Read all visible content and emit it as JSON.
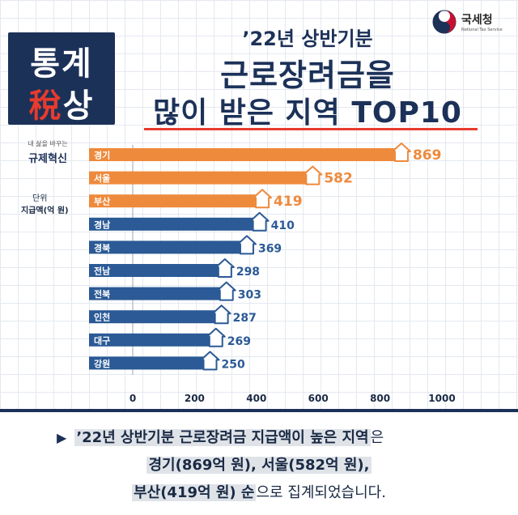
{
  "brand": {
    "logo_line1": "통계",
    "logo_line2_red": "稅",
    "logo_line2_white": "상",
    "agency_name": "국세청",
    "agency_en": "National Tax Service",
    "tagline_small": "내 삶을 바꾸는",
    "tagline_big": "규제혁신"
  },
  "title": {
    "sub": "’22년 상반기분",
    "main": "근로장려금을",
    "main2": "많이 받은 지역 TOP10"
  },
  "unit": {
    "label": "단위",
    "value": "지급액(억 원)"
  },
  "colors": {
    "navy": "#1c3158",
    "orange": "#ee8a3c",
    "blue": "#2b5a96",
    "red": "#e63b2e"
  },
  "chart_data": {
    "type": "bar",
    "orientation": "horizontal",
    "title": "’22년 상반기분 근로장려금을 많이 받은 지역 TOP10",
    "ylabel": "",
    "xlabel": "",
    "unit": "지급액(억 원)",
    "categories": [
      "경기",
      "서울",
      "부산",
      "경남",
      "경북",
      "전남",
      "전북",
      "인천",
      "대구",
      "강원"
    ],
    "values": [
      869,
      582,
      419,
      410,
      369,
      298,
      303,
      287,
      269,
      250
    ],
    "highlight_top": 3,
    "xlim": [
      0,
      1000
    ],
    "xticks": [
      0,
      200,
      400,
      600,
      800,
      1000
    ],
    "grid": true
  },
  "summary": {
    "arrow": "▶",
    "line1_highlight": "’22년 상반기분 근로장려금 지급액이 높은 지역",
    "line1_rest": "은",
    "line2_bold": "경기(869억 원), 서울(582억 원),",
    "line3_bold": "부산(419억 원) 순",
    "line3_rest": "으로 집계되었습니다."
  }
}
